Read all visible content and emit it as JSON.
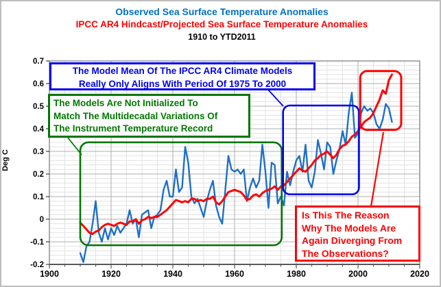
{
  "titles": {
    "line1": "Observed Sea Surface Temperature Anomalies",
    "line2": "IPCC AR4 Hindcast/Projected Sea Surface Temperature Anomalies",
    "line3": "1910 to YTD2011"
  },
  "colors": {
    "title1": "#0070C0",
    "title2": "#FF0000",
    "observed_line": "#1F6FC4",
    "model_line": "#FF0000",
    "annotation_blue": "#0000EE",
    "annotation_green": "#007700",
    "annotation_red": "#FF0000",
    "grid_minor": "#E2E2E2",
    "grid_major": "#ACACAC",
    "axis": "#5A5A5A"
  },
  "annotations": {
    "blue_box": {
      "lines": [
        "The Model Mean Of The IPCC AR4 Climate Models",
        "Really Only Aligns With Period Of 1975 To 2000"
      ]
    },
    "green_box": {
      "lines": [
        "The Models Are Not Initialized To",
        "Match The Multidecadal Variations Of",
        "The Instrument Temperature Record"
      ]
    },
    "red_box": {
      "lines": [
        "Is This The Reason",
        "Why The Models Are",
        "Again Diverging From",
        "The Observations?"
      ]
    }
  },
  "chart_data": {
    "type": "line",
    "title": "Observed Sea Surface Temperature Anomalies / IPCC AR4 Hindcast-Projected SST Anomalies, 1910 to YTD2011",
    "xlabel": "",
    "ylabel": "Deg C",
    "xlim": [
      1900,
      2020
    ],
    "ylim": [
      -0.2,
      0.7
    ],
    "x_ticks": [
      1900,
      1920,
      1940,
      1960,
      1980,
      2000,
      2020
    ],
    "x_tick_labels": [
      "1900",
      "1920",
      "1940",
      "1960",
      "1980",
      "2000",
      "2020"
    ],
    "y_ticks": [
      0.7,
      0.6,
      0.5,
      0.4,
      0.3,
      0.2,
      0.1,
      0,
      -0.1,
      -0.2
    ],
    "y_tick_labels": [
      "0.7",
      "0.6",
      "0.5",
      "0.4",
      "0.3",
      "0.2",
      "0.1",
      "0",
      "-0.1",
      "-0.2"
    ],
    "grid": {
      "y_minor_step": 0.02,
      "y_major_step": 0.1,
      "x_minor_step": 5,
      "x_major_step": 20
    },
    "legend": "none",
    "years": [
      1910,
      1911,
      1912,
      1913,
      1914,
      1915,
      1916,
      1917,
      1918,
      1919,
      1920,
      1921,
      1922,
      1923,
      1924,
      1925,
      1926,
      1927,
      1928,
      1929,
      1930,
      1931,
      1932,
      1933,
      1934,
      1935,
      1936,
      1937,
      1938,
      1939,
      1940,
      1941,
      1942,
      1943,
      1944,
      1945,
      1946,
      1947,
      1948,
      1949,
      1950,
      1951,
      1952,
      1953,
      1954,
      1955,
      1956,
      1957,
      1958,
      1959,
      1960,
      1961,
      1962,
      1963,
      1964,
      1965,
      1966,
      1967,
      1968,
      1969,
      1970,
      1971,
      1972,
      1973,
      1974,
      1975,
      1976,
      1977,
      1978,
      1979,
      1980,
      1981,
      1982,
      1983,
      1984,
      1985,
      1986,
      1987,
      1988,
      1989,
      1990,
      1991,
      1992,
      1993,
      1994,
      1995,
      1996,
      1997,
      1998,
      1999,
      2000,
      2001,
      2002,
      2003,
      2004,
      2005,
      2006,
      2007,
      2008,
      2009,
      2010,
      2011
    ],
    "series": [
      {
        "name": "Observed Sea Surface Temperature Anomalies",
        "color": "#1F6FC4",
        "width": 2.4,
        "values": [
          -0.15,
          -0.19,
          -0.12,
          -0.1,
          -0.02,
          0.08,
          -0.06,
          -0.1,
          -0.04,
          -0.09,
          -0.04,
          -0.07,
          -0.03,
          -0.06,
          -0.04,
          -0.02,
          0.04,
          -0.02,
          0.0,
          -0.08,
          0.02,
          0.03,
          0.04,
          -0.04,
          0.01,
          0.02,
          0.04,
          0.13,
          0.17,
          0.1,
          0.1,
          0.22,
          0.12,
          0.14,
          0.32,
          0.25,
          0.1,
          0.07,
          0.09,
          0.05,
          0.01,
          0.08,
          0.13,
          0.17,
          0.06,
          0.01,
          -0.02,
          0.13,
          0.28,
          0.22,
          0.21,
          0.22,
          0.2,
          0.22,
          0.08,
          0.14,
          0.18,
          0.14,
          0.17,
          0.33,
          0.21,
          0.05,
          0.25,
          0.24,
          0.07,
          0.1,
          0.06,
          0.21,
          0.15,
          0.21,
          0.26,
          0.28,
          0.21,
          0.33,
          0.17,
          0.14,
          0.21,
          0.35,
          0.29,
          0.22,
          0.34,
          0.32,
          0.2,
          0.26,
          0.31,
          0.39,
          0.33,
          0.47,
          0.56,
          0.36,
          0.38,
          0.47,
          0.5,
          0.48,
          0.49,
          0.47,
          0.42,
          0.4,
          0.44,
          0.51,
          0.49,
          0.43
        ]
      },
      {
        "name": "IPCC AR4 Hindcast/Projected Model Mean",
        "color": "#FF0000",
        "width": 3.0,
        "values": [
          -0.015,
          -0.03,
          -0.045,
          -0.06,
          -0.065,
          -0.055,
          -0.05,
          -0.035,
          -0.025,
          -0.02,
          -0.025,
          -0.03,
          -0.02,
          -0.015,
          -0.02,
          -0.025,
          -0.01,
          -0.01,
          0.0,
          -0.02,
          -0.005,
          0.0,
          0.01,
          0.005,
          0.01,
          0.01,
          0.02,
          0.03,
          0.04,
          0.055,
          0.07,
          0.085,
          0.08,
          0.075,
          0.08,
          0.075,
          0.09,
          0.09,
          0.08,
          0.085,
          0.08,
          0.09,
          0.09,
          0.1,
          0.075,
          0.065,
          0.08,
          0.1,
          0.12,
          0.125,
          0.13,
          0.125,
          0.12,
          0.105,
          0.085,
          0.09,
          0.105,
          0.11,
          0.1,
          0.115,
          0.125,
          0.13,
          0.135,
          0.145,
          0.13,
          0.145,
          0.15,
          0.165,
          0.18,
          0.195,
          0.21,
          0.225,
          0.215,
          0.21,
          0.225,
          0.24,
          0.26,
          0.27,
          0.285,
          0.29,
          0.3,
          0.285,
          0.27,
          0.285,
          0.31,
          0.325,
          0.33,
          0.345,
          0.365,
          0.375,
          0.39,
          0.41,
          0.43,
          0.44,
          0.45,
          0.47,
          0.5,
          0.53,
          0.57,
          0.555,
          0.615,
          0.64
        ]
      }
    ],
    "highlight_regions": [
      {
        "name": "green-region",
        "color": "#007700",
        "x0": 1910,
        "x1": 1975.3,
        "y0": -0.115,
        "y1": 0.34,
        "radius": 12,
        "width": 2.6
      },
      {
        "name": "blue-region",
        "color": "#0000EE",
        "x0": 1975.7,
        "x1": 2000.3,
        "y0": 0.11,
        "y1": 0.503,
        "radius": 10,
        "width": 2.6
      },
      {
        "name": "red-region",
        "color": "#FF0000",
        "x0": 2000.7,
        "x1": 2014,
        "y0": 0.395,
        "y1": 0.655,
        "radius": 10,
        "width": 3
      }
    ]
  }
}
